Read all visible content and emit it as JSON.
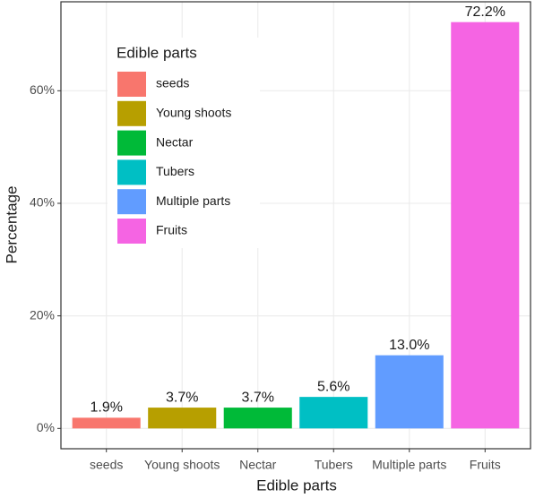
{
  "chart_data": {
    "type": "bar",
    "x_label": "Edible parts",
    "y_label": "Percentage",
    "legend_title": "Edible parts",
    "categories": [
      "seeds",
      "Young shoots",
      "Nectar",
      "Tubers",
      "Multiple parts",
      "Fruits"
    ],
    "values": [
      1.9,
      3.7,
      3.7,
      5.6,
      13.0,
      72.2
    ],
    "value_labels": [
      "1.9%",
      "3.7%",
      "3.7%",
      "5.6%",
      "13.0%",
      "72.2%"
    ],
    "colors": [
      "#F8766D",
      "#B79F00",
      "#00BA38",
      "#00BFC4",
      "#619CFF",
      "#F564E3"
    ],
    "ylim": [
      -3.61,
      75.81
    ],
    "yticks": [
      {
        "value": 0,
        "label": "0%"
      },
      {
        "value": 20,
        "label": "20%"
      },
      {
        "value": 40,
        "label": "40%"
      },
      {
        "value": 60,
        "label": "60%"
      }
    ],
    "grid": true,
    "legend": "top-left"
  }
}
